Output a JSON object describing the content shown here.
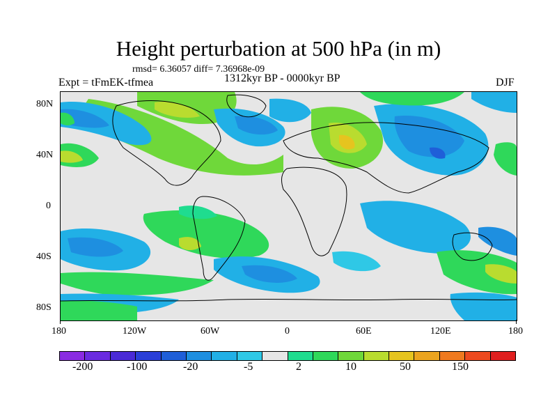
{
  "title": "Height perturbation at 500 hPa (in m)",
  "stats": "rmsd= 6.36057 diff= 7.36968e-09",
  "experiment": "Expt = tFmEK-tfmea",
  "period": "1312kyr BP - 0000kyr BP",
  "season": "DJF",
  "lat_labels": [
    "80N",
    "40N",
    "0",
    "40S",
    "80S"
  ],
  "lon_labels": [
    "180",
    "120W",
    "60W",
    "0",
    "60E",
    "120E",
    "180"
  ],
  "colorbar": {
    "colors": [
      "#8a2be2",
      "#6a2be0",
      "#4a2ad6",
      "#2a3fd8",
      "#1f5fd8",
      "#1e8fe0",
      "#21b0e6",
      "#2fc8e6",
      "#e6e6e6",
      "#1fdc8f",
      "#2fd85a",
      "#6fd83a",
      "#b9dc2f",
      "#e6c41f",
      "#eba41f",
      "#ef7a1f",
      "#ed4a1f",
      "#e01f1f"
    ],
    "labels": [
      "-200",
      "-100",
      "-20",
      "-5",
      "2",
      "10",
      "50",
      "150"
    ]
  }
}
